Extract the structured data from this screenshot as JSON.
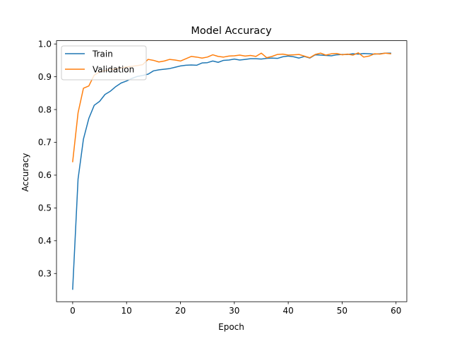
{
  "chart_data": {
    "type": "line",
    "title": "Model Accuracy",
    "xlabel": "Epoch",
    "ylabel": "Accuracy",
    "xlim": [
      -3,
      62
    ],
    "ylim": [
      0.214,
      1.01
    ],
    "xticks": [
      0,
      10,
      20,
      30,
      40,
      50,
      60
    ],
    "yticks": [
      0.3,
      0.4,
      0.5,
      0.6,
      0.7,
      0.8,
      0.9,
      1.0
    ],
    "grid": false,
    "legend_position": "upper-left",
    "x": [
      0,
      1,
      2,
      3,
      4,
      5,
      6,
      7,
      8,
      9,
      10,
      11,
      12,
      13,
      14,
      15,
      16,
      17,
      18,
      19,
      20,
      21,
      22,
      23,
      24,
      25,
      26,
      27,
      28,
      29,
      30,
      31,
      32,
      33,
      34,
      35,
      36,
      37,
      38,
      39,
      40,
      41,
      42,
      43,
      44,
      45,
      46,
      47,
      48,
      49,
      50,
      51,
      52,
      53,
      54,
      55,
      56,
      57,
      58,
      59
    ],
    "series": [
      {
        "name": "Train",
        "color": "#1f77b4",
        "values": [
          0.252,
          0.588,
          0.71,
          0.773,
          0.813,
          0.825,
          0.846,
          0.856,
          0.87,
          0.881,
          0.887,
          0.895,
          0.901,
          0.904,
          0.908,
          0.918,
          0.921,
          0.923,
          0.925,
          0.929,
          0.933,
          0.935,
          0.936,
          0.935,
          0.942,
          0.943,
          0.948,
          0.944,
          0.95,
          0.951,
          0.954,
          0.951,
          0.953,
          0.955,
          0.955,
          0.954,
          0.956,
          0.957,
          0.956,
          0.961,
          0.963,
          0.961,
          0.957,
          0.962,
          0.957,
          0.967,
          0.966,
          0.965,
          0.964,
          0.967,
          0.968,
          0.968,
          0.97,
          0.969,
          0.971,
          0.97,
          0.969,
          0.97,
          0.972,
          0.972
        ]
      },
      {
        "name": "Validation",
        "color": "#ff7f0e",
        "values": [
          0.641,
          0.79,
          0.865,
          0.872,
          0.905,
          0.915,
          0.919,
          0.922,
          0.924,
          0.927,
          0.93,
          0.932,
          0.934,
          0.937,
          0.953,
          0.95,
          0.945,
          0.948,
          0.953,
          0.951,
          0.948,
          0.955,
          0.962,
          0.96,
          0.957,
          0.96,
          0.967,
          0.962,
          0.96,
          0.963,
          0.964,
          0.966,
          0.963,
          0.965,
          0.962,
          0.972,
          0.958,
          0.962,
          0.968,
          0.969,
          0.966,
          0.967,
          0.968,
          0.963,
          0.958,
          0.968,
          0.972,
          0.966,
          0.97,
          0.971,
          0.967,
          0.969,
          0.966,
          0.973,
          0.96,
          0.963,
          0.97,
          0.969,
          0.972,
          0.97
        ]
      }
    ]
  }
}
